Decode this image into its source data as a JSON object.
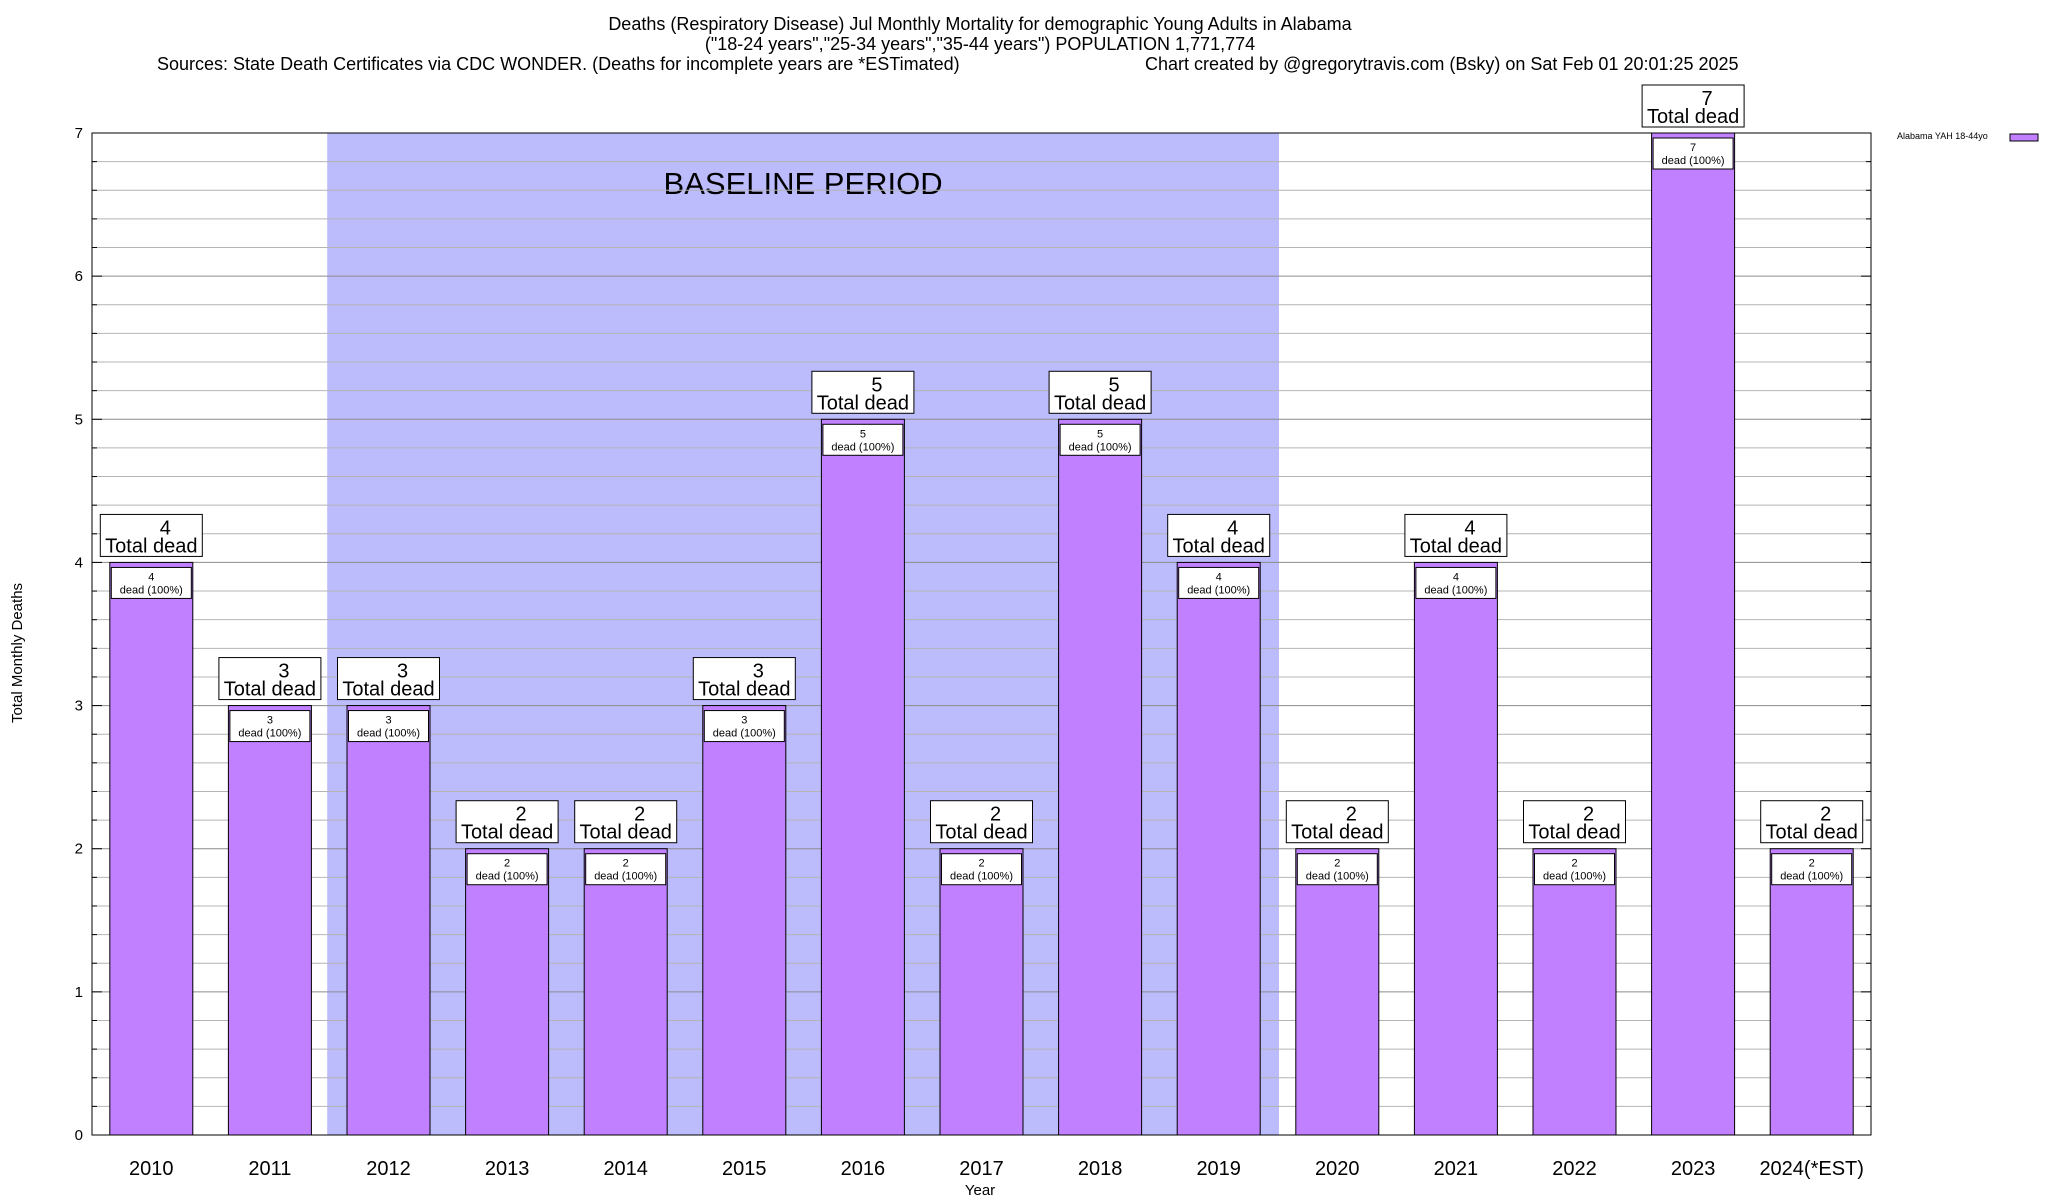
{
  "chart_data": {
    "type": "bar",
    "title_lines": [
      "Deaths (Respiratory Disease) Jul Monthly Mortality for demographic Young Adults in Alabama",
      "(\"18-24 years\",\"25-34 years\",\"35-44 years\") POPULATION 1,771,774",
      "Sources: State Death Certificates via CDC WONDER. (Deaths for incomplete years are *ESTimated)"
    ],
    "credit": "Chart created by @gregorytravis.com (Bsky) on Sat Feb 01 20:01:25 2025",
    "xlabel": "Year",
    "ylabel": "Total Monthly Deaths",
    "ylim": [
      0,
      7
    ],
    "yticks": [
      0,
      1,
      2,
      3,
      4,
      5,
      6,
      7
    ],
    "minor_tick_step": 0.2,
    "grid": true,
    "legend": {
      "placement": "top-right",
      "entries": [
        "Alabama YAH 18-44yo"
      ]
    },
    "baseline_period": {
      "label": "BASELINE PERIOD",
      "start_category": "2012",
      "end_category": "2019",
      "color": "#bcbcfc"
    },
    "categories": [
      "2010",
      "2011",
      "2012",
      "2013",
      "2014",
      "2015",
      "2016",
      "2017",
      "2018",
      "2019",
      "2020",
      "2021",
      "2022",
      "2023",
      "2024(*EST)"
    ],
    "series": [
      {
        "name": "Alabama YAH 18-44yo",
        "color": "#c080ff",
        "values": [
          4,
          3,
          3,
          2,
          2,
          3,
          5,
          2,
          5,
          4,
          2,
          4,
          2,
          7,
          2
        ]
      }
    ],
    "total_label_suffix": "Total dead",
    "segment_label_suffix": "dead (100%)"
  }
}
